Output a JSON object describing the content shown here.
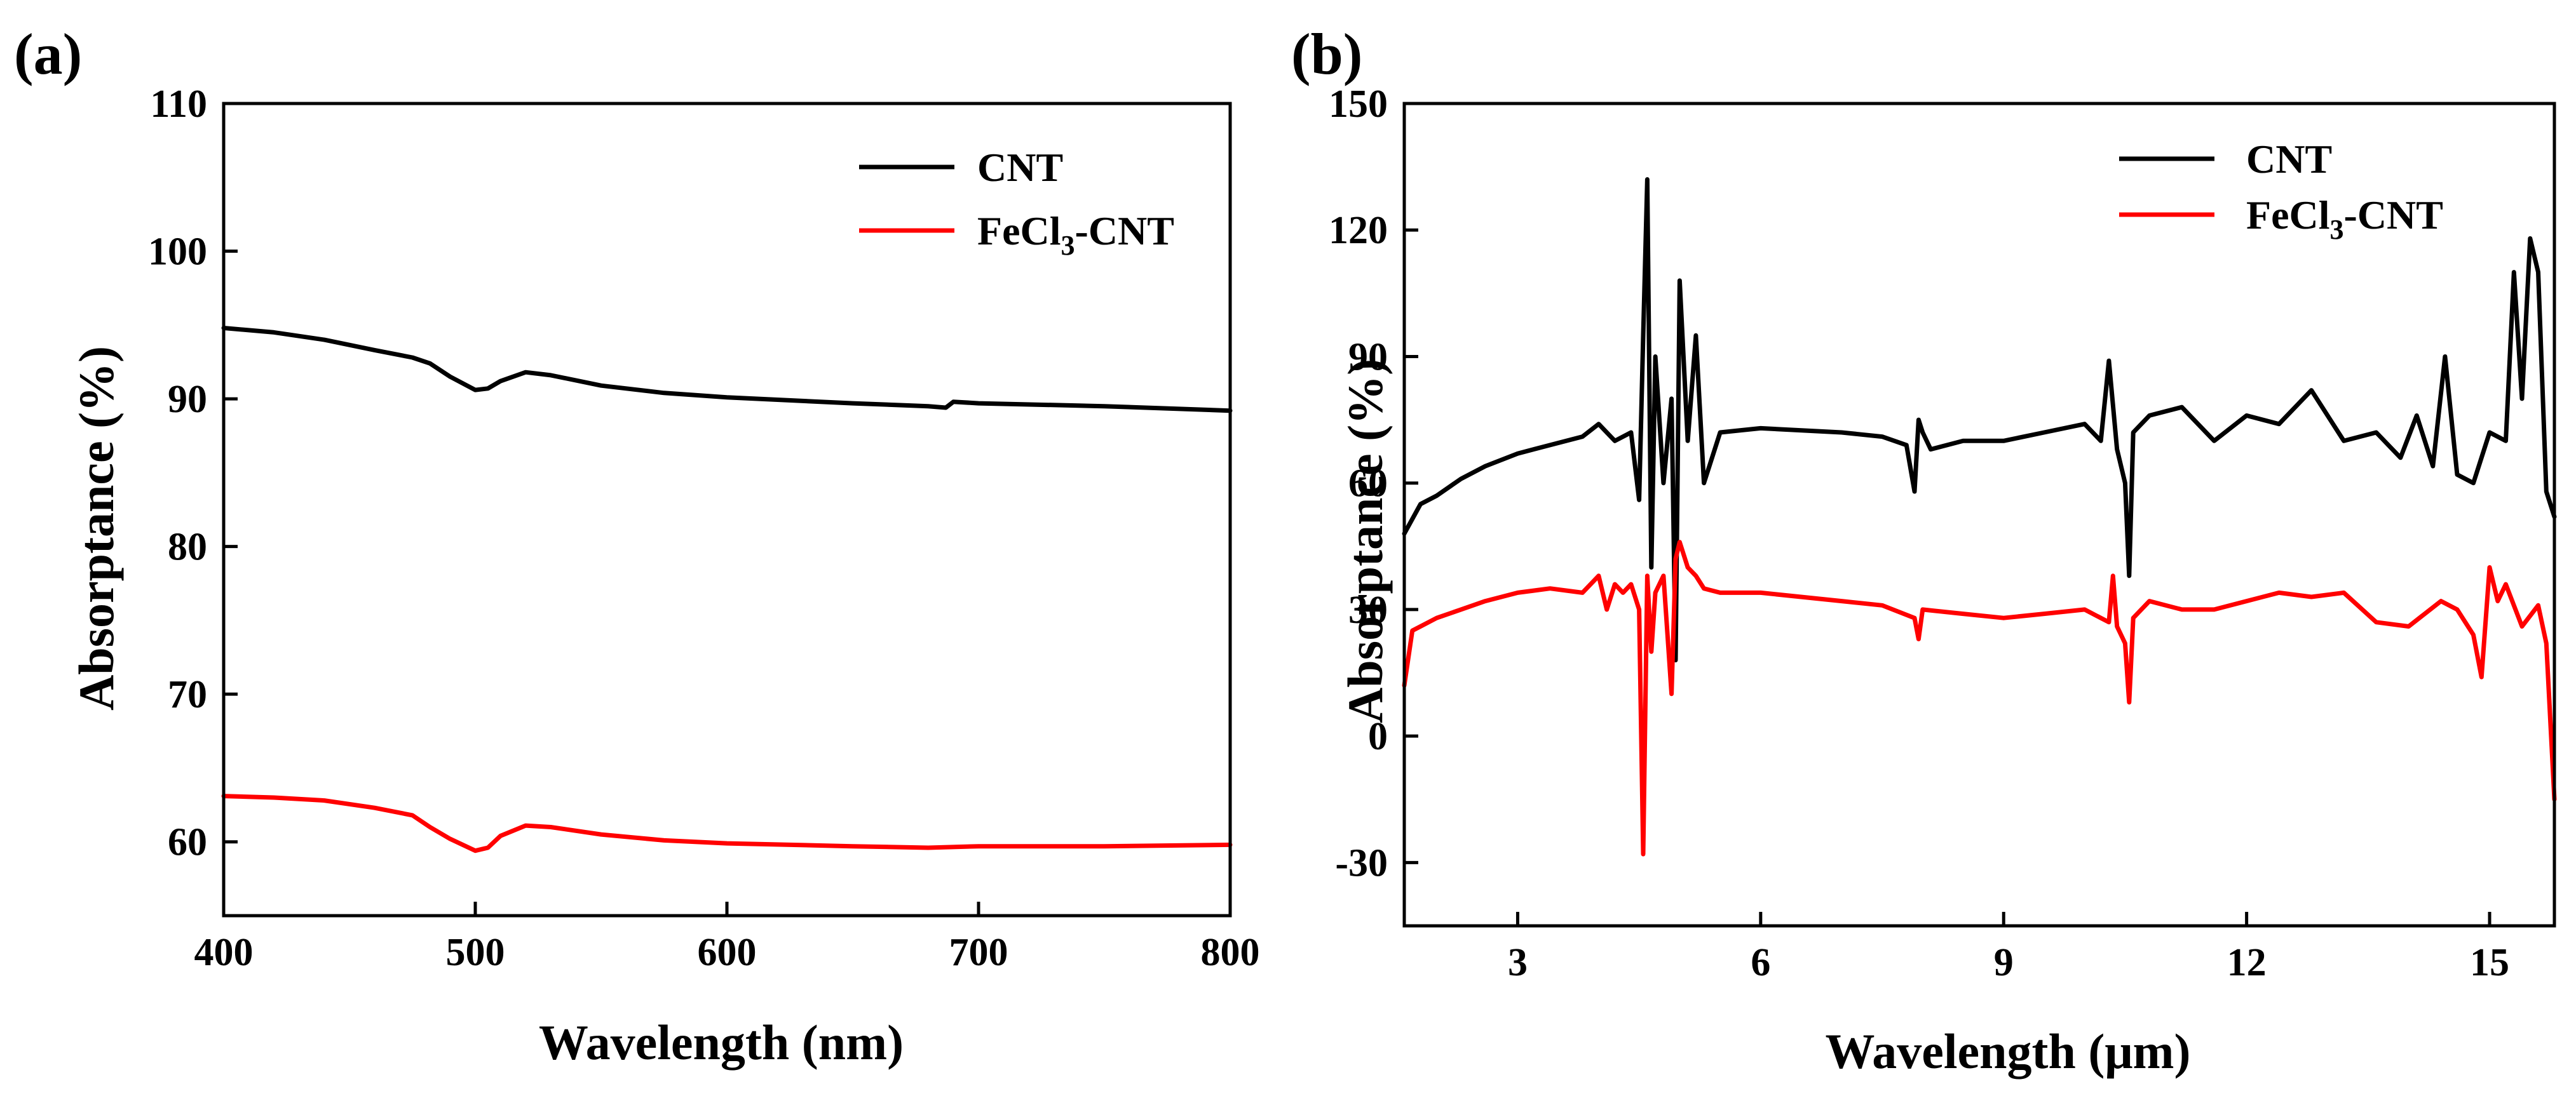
{
  "chart_data": [
    {
      "panel_label": "(a)",
      "type": "line",
      "xlabel": "Wavelength (nm)",
      "ylabel": "Absorptance (%)",
      "xlim": [
        400,
        800
      ],
      "ylim": [
        55,
        110
      ],
      "xticks": [
        "400",
        "500",
        "600",
        "700",
        "800"
      ],
      "yticks": [
        "60",
        "70",
        "80",
        "90",
        "100",
        "110"
      ],
      "legend_position": "top-right",
      "series": [
        {
          "name": "CNT",
          "color": "#000000",
          "x": [
            400,
            420,
            440,
            460,
            475,
            482,
            490,
            500,
            505,
            510,
            520,
            530,
            550,
            575,
            600,
            650,
            680,
            687,
            690,
            700,
            750,
            800
          ],
          "y": [
            94.8,
            94.5,
            94.0,
            93.3,
            92.8,
            92.4,
            91.5,
            90.6,
            90.7,
            91.2,
            91.8,
            91.6,
            90.9,
            90.4,
            90.1,
            89.7,
            89.5,
            89.4,
            89.8,
            89.7,
            89.5,
            89.2
          ]
        },
        {
          "name": "FeCl3-CNT",
          "name_parts": [
            "FeCl",
            "3",
            "-CNT"
          ],
          "color": "#ff0000",
          "x": [
            400,
            420,
            440,
            460,
            475,
            482,
            490,
            500,
            505,
            510,
            520,
            530,
            550,
            575,
            600,
            650,
            680,
            700,
            750,
            800
          ],
          "y": [
            63.1,
            63.0,
            62.8,
            62.3,
            61.8,
            61.0,
            60.2,
            59.4,
            59.6,
            60.4,
            61.1,
            61.0,
            60.5,
            60.1,
            59.9,
            59.7,
            59.6,
            59.7,
            59.7,
            59.8
          ]
        }
      ]
    },
    {
      "panel_label": "(b)",
      "type": "line",
      "xlabel": "Wavelength (μm)",
      "ylabel": "Absorptance (%)",
      "xlim": [
        1.6,
        15.8
      ],
      "ylim": [
        -45,
        150
      ],
      "xticks": [
        "3",
        "6",
        "9",
        "12",
        "15"
      ],
      "yticks": [
        "-30",
        "0",
        "30",
        "60",
        "90",
        "120",
        "150"
      ],
      "legend_position": "top-right",
      "series": [
        {
          "name": "CNT",
          "color": "#000000",
          "x": [
            1.6,
            1.8,
            2.0,
            2.3,
            2.6,
            3.0,
            3.4,
            3.8,
            4.0,
            4.2,
            4.4,
            4.5,
            4.55,
            4.6,
            4.65,
            4.7,
            4.8,
            4.9,
            4.95,
            5.0,
            5.1,
            5.2,
            5.3,
            5.5,
            6.0,
            7.0,
            7.5,
            7.8,
            7.9,
            7.95,
            8.0,
            8.1,
            8.5,
            9.0,
            9.5,
            10.0,
            10.2,
            10.3,
            10.4,
            10.5,
            10.55,
            10.6,
            10.8,
            11.2,
            11.6,
            12.0,
            12.4,
            12.8,
            13.2,
            13.6,
            13.9,
            14.1,
            14.3,
            14.45,
            14.6,
            14.8,
            15.0,
            15.2,
            15.3,
            15.4,
            15.5,
            15.6,
            15.7,
            15.8
          ],
          "y": [
            48,
            55,
            57,
            61,
            64,
            67,
            69,
            71,
            74,
            70,
            72,
            56,
            95,
            132,
            40,
            90,
            60,
            80,
            18,
            108,
            70,
            95,
            60,
            72,
            73,
            72,
            71,
            69,
            58,
            75,
            72,
            68,
            70,
            70,
            72,
            74,
            70,
            89,
            68,
            60,
            38,
            72,
            76,
            78,
            70,
            76,
            74,
            82,
            70,
            72,
            66,
            76,
            64,
            90,
            62,
            60,
            72,
            70,
            110,
            80,
            118,
            110,
            58,
            52
          ]
        },
        {
          "name": "FeCl3-CNT",
          "name_parts": [
            "FeCl",
            "3",
            "-CNT"
          ],
          "color": "#ff0000",
          "x": [
            1.6,
            1.7,
            1.8,
            2.0,
            2.3,
            2.6,
            3.0,
            3.4,
            3.8,
            4.0,
            4.1,
            4.2,
            4.3,
            4.4,
            4.5,
            4.55,
            4.6,
            4.65,
            4.7,
            4.8,
            4.9,
            4.95,
            5.0,
            5.1,
            5.2,
            5.3,
            5.5,
            6.0,
            7.0,
            7.5,
            7.9,
            7.95,
            8.0,
            8.5,
            9.0,
            9.5,
            10.0,
            10.3,
            10.35,
            10.4,
            10.5,
            10.55,
            10.6,
            10.8,
            11.2,
            11.6,
            12.0,
            12.4,
            12.8,
            13.2,
            13.6,
            14.0,
            14.4,
            14.6,
            14.8,
            14.9,
            15.0,
            15.1,
            15.2,
            15.4,
            15.6,
            15.7,
            15.8
          ],
          "y": [
            12,
            25,
            26,
            28,
            30,
            32,
            34,
            35,
            34,
            38,
            30,
            36,
            34,
            36,
            30,
            -28,
            38,
            20,
            34,
            38,
            10,
            42,
            46,
            40,
            38,
            35,
            34,
            34,
            32,
            31,
            28,
            23,
            30,
            29,
            28,
            29,
            30,
            27,
            38,
            26,
            22,
            8,
            28,
            32,
            30,
            30,
            32,
            34,
            33,
            34,
            27,
            26,
            32,
            30,
            24,
            14,
            40,
            32,
            36,
            26,
            31,
            22,
            -15
          ]
        }
      ]
    }
  ]
}
